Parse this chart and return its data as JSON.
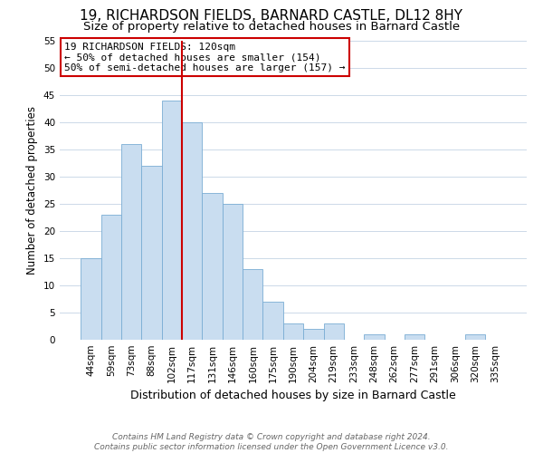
{
  "title": "19, RICHARDSON FIELDS, BARNARD CASTLE, DL12 8HY",
  "subtitle": "Size of property relative to detached houses in Barnard Castle",
  "xlabel": "Distribution of detached houses by size in Barnard Castle",
  "ylabel": "Number of detached properties",
  "categories": [
    "44sqm",
    "59sqm",
    "73sqm",
    "88sqm",
    "102sqm",
    "117sqm",
    "131sqm",
    "146sqm",
    "160sqm",
    "175sqm",
    "190sqm",
    "204sqm",
    "219sqm",
    "233sqm",
    "248sqm",
    "262sqm",
    "277sqm",
    "291sqm",
    "306sqm",
    "320sqm",
    "335sqm"
  ],
  "values": [
    15,
    23,
    36,
    32,
    44,
    40,
    27,
    25,
    13,
    7,
    3,
    2,
    3,
    0,
    1,
    0,
    1,
    0,
    0,
    1,
    0
  ],
  "bar_color": "#c9ddf0",
  "bar_edge_color": "#7aadd4",
  "vline_x": 4.5,
  "vline_color": "#cc0000",
  "ylim": [
    0,
    55
  ],
  "yticks": [
    0,
    5,
    10,
    15,
    20,
    25,
    30,
    35,
    40,
    45,
    50,
    55
  ],
  "background_color": "#ffffff",
  "grid_color": "#ccd9e8",
  "annotation_title": "19 RICHARDSON FIELDS: 120sqm",
  "annotation_line1": "← 50% of detached houses are smaller (154)",
  "annotation_line2": "50% of semi-detached houses are larger (157) →",
  "annotation_box_color": "#ffffff",
  "annotation_box_edge": "#cc0000",
  "footer_line1": "Contains HM Land Registry data © Crown copyright and database right 2024.",
  "footer_line2": "Contains public sector information licensed under the Open Government Licence v3.0.",
  "title_fontsize": 11,
  "subtitle_fontsize": 9.5,
  "xlabel_fontsize": 9,
  "ylabel_fontsize": 8.5,
  "tick_fontsize": 7.5,
  "annotation_fontsize": 8,
  "footer_fontsize": 6.5
}
